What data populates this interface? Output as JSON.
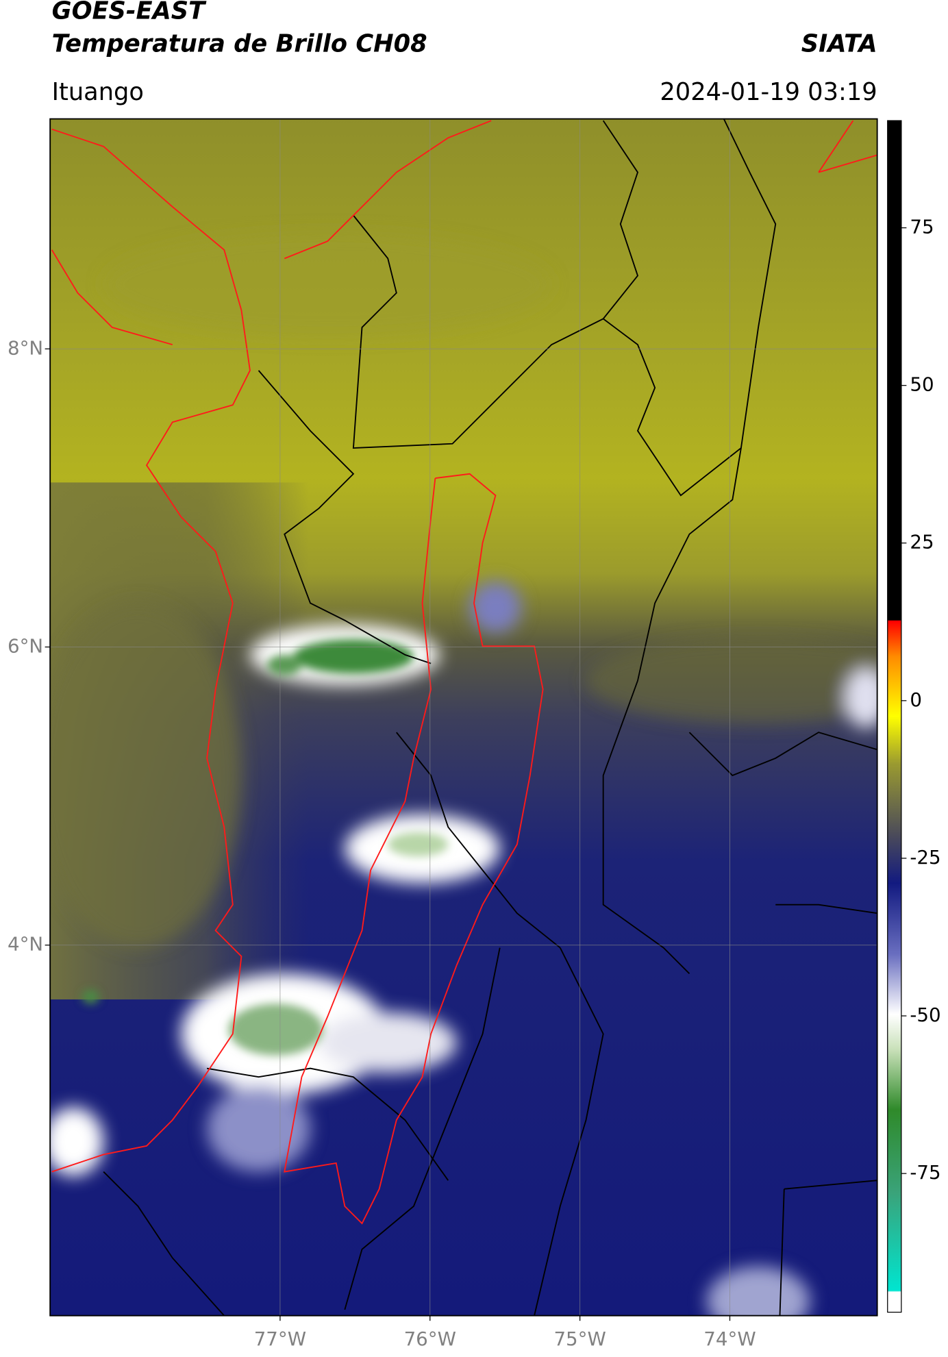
{
  "header": {
    "satellite": "GOES-EAST",
    "product": "Temperatura de Brillo CH08",
    "agency": "SIATA",
    "location": "Ituango",
    "datetime": "2024-01-19 03:19"
  },
  "map": {
    "lonlim": [
      -78.534,
      -73.017
    ],
    "latlim": [
      1.514,
      9.543
    ],
    "grid": true,
    "lonticks": [
      {
        "value": -77,
        "label": "77°W"
      },
      {
        "value": -76,
        "label": "76°W"
      },
      {
        "value": -75,
        "label": "75°W"
      },
      {
        "value": -74,
        "label": "74°W"
      }
    ],
    "latticks": [
      {
        "value": 8,
        "label": "8°N"
      },
      {
        "value": 6,
        "label": "6°N"
      },
      {
        "value": 4,
        "label": "4°N"
      }
    ]
  },
  "colorbar": {
    "lim": [
      -97,
      92
    ],
    "ticks": [
      75,
      50,
      25,
      0,
      -25,
      -50,
      -75
    ]
  }
}
